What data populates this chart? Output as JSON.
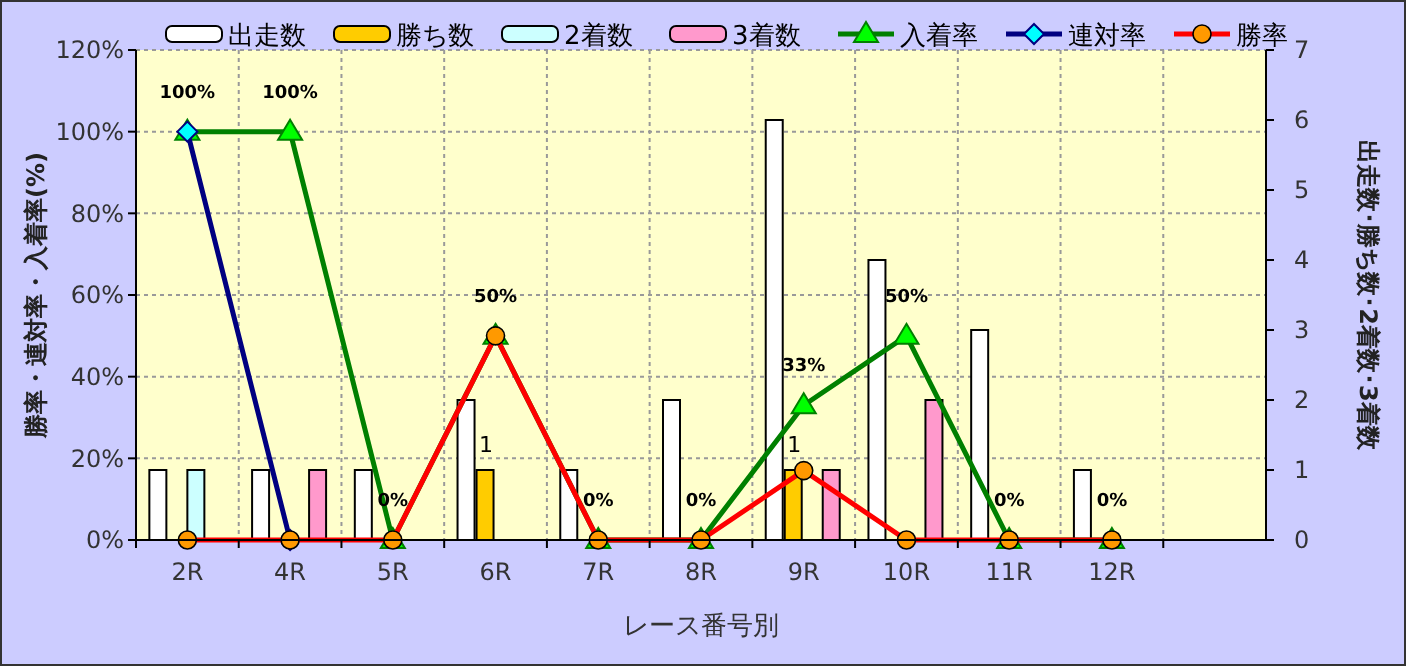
{
  "chart_data": {
    "type": "bar",
    "xlabel": "レース番号別",
    "ylabel": "勝率・連対率・入着率(%)",
    "y2label": "出走数･勝ち数･2着数･3着数",
    "categories": [
      "2R",
      "4R",
      "5R",
      "6R",
      "7R",
      "8R",
      "9R",
      "10R",
      "11R",
      "12R",
      null
    ],
    "ylim": [
      0,
      120
    ],
    "yticks": [
      {
        "value": 0,
        "label": "0%"
      },
      {
        "value": 20,
        "label": "20%"
      },
      {
        "value": 40,
        "label": "40%"
      },
      {
        "value": 60,
        "label": "60%"
      },
      {
        "value": 80,
        "label": "80%"
      },
      {
        "value": 100,
        "label": "100%"
      },
      {
        "value": 120,
        "label": "120%"
      }
    ],
    "y2lim": [
      0,
      7
    ],
    "y2ticks": [
      0,
      1,
      2,
      3,
      4,
      5,
      6,
      7
    ],
    "grid": true,
    "legend": "top",
    "series": [
      {
        "name": "出走数",
        "axis": "y2",
        "color": "#ffffff",
        "values": [
          1,
          1,
          1,
          2,
          1,
          2,
          6,
          4,
          3,
          1,
          null
        ]
      },
      {
        "name": "勝ち数",
        "axis": "y2",
        "color": "#ffcc00",
        "values": [
          0,
          0,
          0,
          1,
          0,
          0,
          1,
          0,
          0,
          0,
          null
        ],
        "value_labels": [
          null,
          null,
          null,
          "1",
          null,
          null,
          "1",
          null,
          null,
          null,
          null
        ]
      },
      {
        "name": "2着数",
        "axis": "y2",
        "color": "#ccffff",
        "values": [
          1,
          0,
          0,
          0,
          0,
          0,
          0,
          0,
          0,
          0,
          null
        ]
      },
      {
        "name": "3着数",
        "axis": "y2",
        "color": "#ff99cc",
        "values": [
          0,
          1,
          0,
          0,
          0,
          0,
          1,
          2,
          0,
          0,
          null
        ]
      },
      {
        "name": "入着率",
        "type": "line",
        "color": "#008000",
        "marker": "triangle",
        "values": [
          100,
          100,
          0,
          50,
          0,
          0,
          33,
          50,
          0,
          0,
          null
        ],
        "value_labels": [
          "100%",
          "100%",
          "0%",
          "50%",
          "0%",
          "0%",
          "33%",
          "50%",
          "0%",
          "0%",
          null
        ]
      },
      {
        "name": "連対率",
        "type": "line",
        "color": "#000080",
        "marker": "diamond",
        "values": [
          100,
          0,
          null,
          null,
          null,
          null,
          null,
          null,
          null,
          null,
          null
        ]
      },
      {
        "name": "勝率",
        "type": "line",
        "color": "#ff0000",
        "marker": "circle",
        "values": [
          0,
          0,
          0,
          50,
          0,
          0,
          17,
          0,
          0,
          0,
          null
        ]
      }
    ]
  }
}
